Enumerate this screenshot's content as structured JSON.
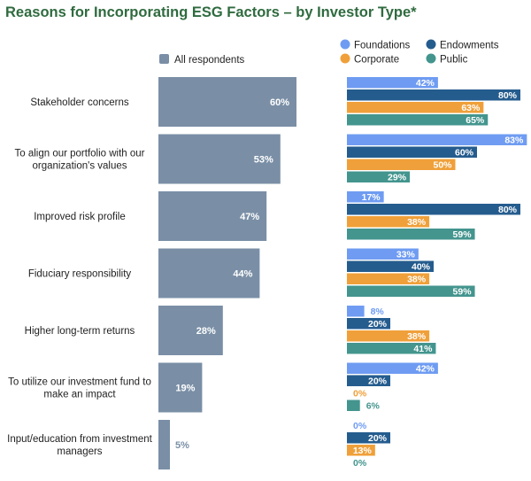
{
  "chart_data": {
    "type": "bar",
    "title": "Reasons for Incorporating ESG Factors – by Investor Type*",
    "categories": [
      "Stakeholder concerns",
      "To align our portfolio with our organization's values",
      "Improved risk profile",
      "Fiduciary responsibility",
      "Higher long-term returns",
      "To utilize our investment fund to make an impact",
      "Input/education from investment managers"
    ],
    "category_labels": [
      [
        "Stakeholder concerns"
      ],
      [
        "To align our portfolio with our",
        "organization's values"
      ],
      [
        "Improved risk profile"
      ],
      [
        "Fiduciary responsibility"
      ],
      [
        "Higher long-term returns"
      ],
      [
        "To utilize our investment fund to",
        "make an impact"
      ],
      [
        "Input/education from investment",
        "managers"
      ]
    ],
    "all_respondents": {
      "name": "All respondents",
      "color": "#7a8fa6",
      "values": [
        60,
        53,
        47,
        44,
        28,
        19,
        5
      ]
    },
    "series": [
      {
        "name": "Foundations",
        "color": "#6f9cf2",
        "values": [
          42,
          83,
          17,
          33,
          8,
          42,
          0
        ]
      },
      {
        "name": "Endowments",
        "color": "#255c8e",
        "values": [
          80,
          60,
          80,
          40,
          20,
          20,
          20
        ]
      },
      {
        "name": "Corporate",
        "color": "#f0a03a",
        "values": [
          63,
          50,
          38,
          38,
          38,
          0,
          13
        ]
      },
      {
        "name": "Public",
        "color": "#43958e",
        "values": [
          65,
          29,
          59,
          59,
          41,
          6,
          0
        ]
      }
    ],
    "value_suffix": "%",
    "legend_placement": "top",
    "grid": false
  }
}
